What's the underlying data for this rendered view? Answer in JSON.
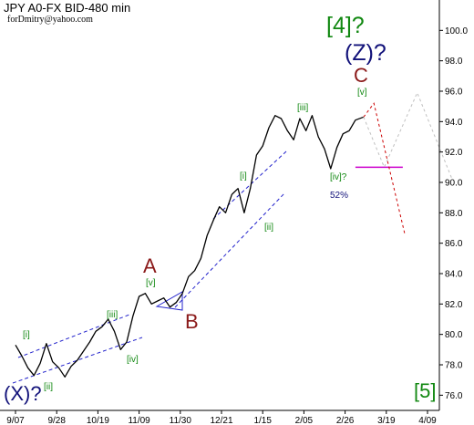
{
  "header": {
    "title": "JPY A0-FX BID-480 min",
    "author": "forDmitry@yahoo.com"
  },
  "chart_data": {
    "type": "line",
    "title": "JPY A0-FX BID-480 min",
    "xlabel": "",
    "ylabel": "",
    "ylim": [
      75.0,
      102.0
    ],
    "x_ticks": [
      "9/07",
      "9/28",
      "10/19",
      "11/09",
      "11/30",
      "12/21",
      "1/15",
      "2/05",
      "2/26",
      "3/19",
      "4/09"
    ],
    "y_ticks": [
      76.0,
      78.0,
      80.0,
      82.0,
      84.0,
      86.0,
      88.0,
      90.0,
      92.0,
      94.0,
      96.0,
      98.0,
      100.0
    ],
    "grid": false,
    "series": [
      {
        "kind": "price",
        "x_index": [
          0.0,
          0.15,
          0.3,
          0.45,
          0.6,
          0.75,
          0.9,
          1.05,
          1.2,
          1.35,
          1.5,
          1.65,
          1.8,
          1.95,
          2.1,
          2.25,
          2.4,
          2.55,
          2.7,
          2.85,
          3.0,
          3.15,
          3.3,
          3.45,
          3.6,
          3.75,
          3.9,
          4.05,
          4.2,
          4.35,
          4.5,
          4.65,
          4.8,
          4.95,
          5.1,
          5.25,
          5.4,
          5.55,
          5.7,
          5.85,
          6.0,
          6.15,
          6.3,
          6.45,
          6.6,
          6.75,
          6.9,
          7.05,
          7.2,
          7.35,
          7.5,
          7.65,
          7.8,
          7.95,
          8.1,
          8.25,
          8.45
        ],
        "values": [
          79.3,
          78.6,
          77.8,
          77.3,
          78.1,
          79.4,
          78.2,
          77.8,
          77.2,
          77.9,
          78.3,
          78.9,
          79.5,
          80.2,
          80.5,
          81.0,
          80.2,
          79.0,
          79.5,
          81.2,
          82.5,
          82.7,
          82.0,
          82.2,
          82.4,
          81.8,
          82.1,
          82.7,
          83.8,
          84.2,
          85.0,
          86.5,
          87.5,
          88.4,
          88.0,
          89.2,
          89.6,
          88.0,
          89.6,
          91.8,
          92.4,
          93.6,
          94.4,
          94.2,
          93.4,
          92.8,
          94.2,
          93.4,
          94.4,
          93.0,
          92.2,
          90.9,
          92.3,
          93.2,
          93.4,
          94.1,
          94.3
        ]
      },
      {
        "kind": "forecast",
        "color": "#cc0000",
        "x_index": [
          8.45,
          8.7,
          9.45
        ],
        "values": [
          94.3,
          95.2,
          86.6
        ]
      },
      {
        "kind": "alternative",
        "color": "#c0c0c0",
        "x_index": [
          8.45,
          8.95,
          9.75,
          10.6
        ],
        "values": [
          94.3,
          91.0,
          95.9,
          90.2
        ]
      }
    ],
    "support_line": {
      "color": "#cc00cc",
      "x_index": [
        8.25,
        9.4
      ],
      "value": 91.0
    },
    "annotations": {
      "wave_4": "[4]?",
      "wave_z": "(Z)?",
      "wave_c": "C",
      "wave_v_top": "[v]",
      "wave_iii_top": "[iii]",
      "wave_iv_q": "[iv]?",
      "percent": "52%",
      "wave_i_mid": "[i]",
      "wave_ii_mid": "[ii]",
      "wave_a": "A",
      "wave_v_a": "[v]",
      "wave_b": "B",
      "wave_iii_low": "[iii]",
      "wave_iv_low": "[iv]",
      "wave_i_low": "[i]",
      "wave_ii_low": "[ii]",
      "wave_x": "(X)?",
      "wave_5": "[5]"
    },
    "label_colors": {
      "green": "#118811",
      "navy": "#12127a",
      "maroon": "#8b1a1a"
    }
  }
}
